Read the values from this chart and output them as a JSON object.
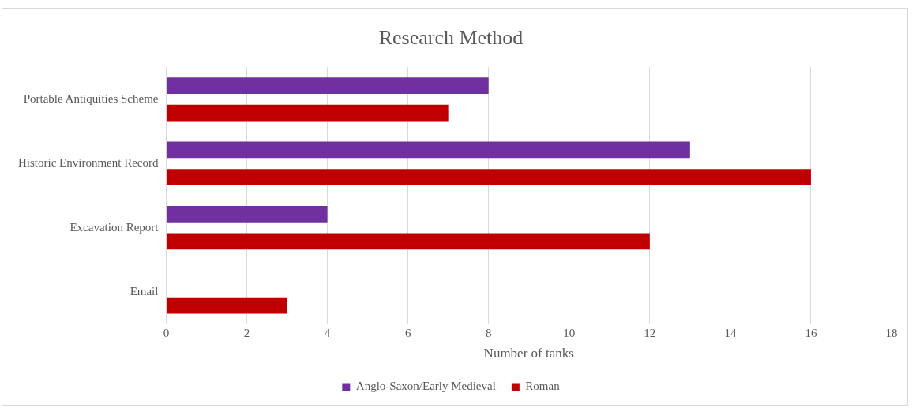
{
  "chart_data": {
    "type": "bar",
    "orientation": "horizontal",
    "title": "Research Method",
    "xlabel": "Number of tanks",
    "categories": [
      "Portable Antiquities Scheme",
      "Historic Environment Record",
      "Excavation Report",
      "Email"
    ],
    "series": [
      {
        "name": "Anglo-Saxon/Early Medieval",
        "color": "#7030a0",
        "values": [
          8,
          13,
          4,
          0
        ]
      },
      {
        "name": "Roman",
        "color": "#c00000",
        "values": [
          7,
          16,
          12,
          3
        ]
      }
    ],
    "xlim": [
      0,
      18
    ],
    "xticks": [
      0,
      2,
      4,
      6,
      8,
      10,
      12,
      14,
      16,
      18
    ],
    "grid": "x",
    "legend": "bottom"
  }
}
